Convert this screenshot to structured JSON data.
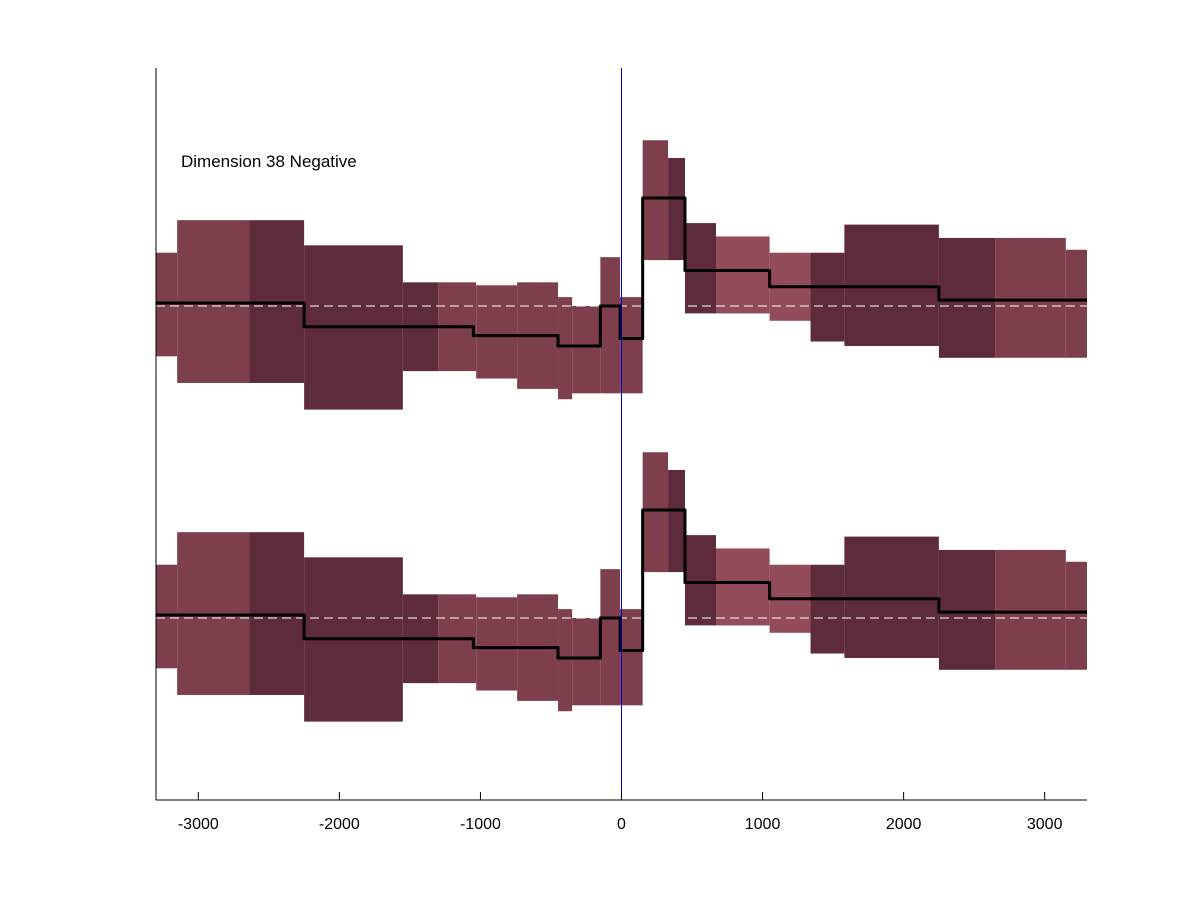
{
  "chart_data": {
    "type": "area",
    "title": "Dimension 38 Negative",
    "xlim": [
      -3300,
      3300
    ],
    "x_ticks": [
      -3000,
      -2000,
      -1000,
      0,
      1000,
      2000,
      3000
    ],
    "x_tick_labels": [
      "-3000",
      "-2000",
      "-1000",
      "0",
      "1000",
      "2000",
      "3000"
    ],
    "y_ticks_shown": false,
    "vertical_reference_x": 0,
    "colors": {
      "band_light": "#7e3f4d",
      "band_dark": "#5e2b3d",
      "band_highlight": "#924b58",
      "line": "#000000",
      "baseline": "#ffffff",
      "reference": "#0000cc"
    },
    "panels": [
      {
        "name": "upper",
        "baseline": 0,
        "bands": [
          {
            "x0": -3300,
            "x1": -3150,
            "lo": -0.34,
            "hi": 0.36,
            "shade": "light"
          },
          {
            "x0": -3150,
            "x1": -2640,
            "lo": -0.52,
            "hi": 0.58,
            "shade": "light"
          },
          {
            "x0": -2640,
            "x1": -2250,
            "lo": -0.52,
            "hi": 0.58,
            "shade": "dark"
          },
          {
            "x0": -2250,
            "x1": -1550,
            "lo": -0.7,
            "hi": 0.41,
            "shade": "dark"
          },
          {
            "x0": -1550,
            "x1": -1300,
            "lo": -0.44,
            "hi": 0.16,
            "shade": "dark"
          },
          {
            "x0": -1300,
            "x1": -1030,
            "lo": -0.44,
            "hi": 0.16,
            "shade": "light"
          },
          {
            "x0": -1030,
            "x1": -740,
            "lo": -0.49,
            "hi": 0.14,
            "shade": "light"
          },
          {
            "x0": -740,
            "x1": -450,
            "lo": -0.56,
            "hi": 0.16,
            "shade": "light"
          },
          {
            "x0": -450,
            "x1": -350,
            "lo": -0.63,
            "hi": 0.06,
            "shade": "light"
          },
          {
            "x0": -350,
            "x1": -150,
            "lo": -0.59,
            "hi": 0.0,
            "shade": "light"
          },
          {
            "x0": -150,
            "x1": -10,
            "lo": -0.59,
            "hi": 0.33,
            "shade": "light"
          },
          {
            "x0": -10,
            "x1": 150,
            "lo": -0.59,
            "hi": 0.06,
            "shade": "light"
          },
          {
            "x0": 150,
            "x1": 330,
            "lo": 0.31,
            "hi": 1.12,
            "shade": "light"
          },
          {
            "x0": 330,
            "x1": 450,
            "lo": 0.31,
            "hi": 1.0,
            "shade": "dark"
          },
          {
            "x0": 450,
            "x1": 670,
            "lo": -0.05,
            "hi": 0.56,
            "shade": "dark"
          },
          {
            "x0": 670,
            "x1": 1050,
            "lo": -0.05,
            "hi": 0.47,
            "shade": "highlight"
          },
          {
            "x0": 1050,
            "x1": 1340,
            "lo": -0.1,
            "hi": 0.36,
            "shade": "highlight"
          },
          {
            "x0": 1340,
            "x1": 1580,
            "lo": -0.24,
            "hi": 0.36,
            "shade": "dark"
          },
          {
            "x0": 1580,
            "x1": 2250,
            "lo": -0.27,
            "hi": 0.55,
            "shade": "dark"
          },
          {
            "x0": 2250,
            "x1": 2650,
            "lo": -0.35,
            "hi": 0.46,
            "shade": "dark"
          },
          {
            "x0": 2650,
            "x1": 3150,
            "lo": -0.35,
            "hi": 0.46,
            "shade": "light"
          },
          {
            "x0": 3150,
            "x1": 3300,
            "lo": -0.35,
            "hi": 0.38,
            "shade": "light"
          }
        ],
        "mean_steps": [
          {
            "x0": -3300,
            "x1": -2250,
            "y": 0.02
          },
          {
            "x0": -2250,
            "x1": -1050,
            "y": -0.14
          },
          {
            "x0": -1050,
            "x1": -450,
            "y": -0.2
          },
          {
            "x0": -450,
            "x1": -150,
            "y": -0.27
          },
          {
            "x0": -150,
            "x1": -10,
            "y": 0.0
          },
          {
            "x0": -10,
            "x1": 150,
            "y": -0.22
          },
          {
            "x0": 150,
            "x1": 450,
            "y": 0.73
          },
          {
            "x0": 450,
            "x1": 1050,
            "y": 0.24
          },
          {
            "x0": 1050,
            "x1": 2250,
            "y": 0.13
          },
          {
            "x0": 2250,
            "x1": 3300,
            "y": 0.04
          }
        ]
      },
      {
        "name": "lower",
        "baseline": 0,
        "bands": [
          {
            "x0": -3300,
            "x1": -3150,
            "lo": -0.34,
            "hi": 0.36,
            "shade": "light"
          },
          {
            "x0": -3150,
            "x1": -2640,
            "lo": -0.52,
            "hi": 0.58,
            "shade": "light"
          },
          {
            "x0": -2640,
            "x1": -2250,
            "lo": -0.52,
            "hi": 0.58,
            "shade": "dark"
          },
          {
            "x0": -2250,
            "x1": -1550,
            "lo": -0.7,
            "hi": 0.41,
            "shade": "dark"
          },
          {
            "x0": -1550,
            "x1": -1300,
            "lo": -0.44,
            "hi": 0.16,
            "shade": "dark"
          },
          {
            "x0": -1300,
            "x1": -1030,
            "lo": -0.44,
            "hi": 0.16,
            "shade": "light"
          },
          {
            "x0": -1030,
            "x1": -740,
            "lo": -0.49,
            "hi": 0.14,
            "shade": "light"
          },
          {
            "x0": -740,
            "x1": -450,
            "lo": -0.56,
            "hi": 0.16,
            "shade": "light"
          },
          {
            "x0": -450,
            "x1": -350,
            "lo": -0.63,
            "hi": 0.06,
            "shade": "light"
          },
          {
            "x0": -350,
            "x1": -150,
            "lo": -0.59,
            "hi": 0.0,
            "shade": "light"
          },
          {
            "x0": -150,
            "x1": -10,
            "lo": -0.59,
            "hi": 0.33,
            "shade": "light"
          },
          {
            "x0": -10,
            "x1": 150,
            "lo": -0.59,
            "hi": 0.06,
            "shade": "light"
          },
          {
            "x0": 150,
            "x1": 330,
            "lo": 0.31,
            "hi": 1.12,
            "shade": "light"
          },
          {
            "x0": 330,
            "x1": 450,
            "lo": 0.31,
            "hi": 1.0,
            "shade": "dark"
          },
          {
            "x0": 450,
            "x1": 670,
            "lo": -0.05,
            "hi": 0.56,
            "shade": "dark"
          },
          {
            "x0": 670,
            "x1": 1050,
            "lo": -0.05,
            "hi": 0.47,
            "shade": "highlight"
          },
          {
            "x0": 1050,
            "x1": 1340,
            "lo": -0.1,
            "hi": 0.36,
            "shade": "highlight"
          },
          {
            "x0": 1340,
            "x1": 1580,
            "lo": -0.24,
            "hi": 0.36,
            "shade": "dark"
          },
          {
            "x0": 1580,
            "x1": 2250,
            "lo": -0.27,
            "hi": 0.55,
            "shade": "dark"
          },
          {
            "x0": 2250,
            "x1": 2650,
            "lo": -0.35,
            "hi": 0.46,
            "shade": "dark"
          },
          {
            "x0": 2650,
            "x1": 3150,
            "lo": -0.35,
            "hi": 0.46,
            "shade": "light"
          },
          {
            "x0": 3150,
            "x1": 3300,
            "lo": -0.35,
            "hi": 0.38,
            "shade": "light"
          }
        ],
        "mean_steps": [
          {
            "x0": -3300,
            "x1": -2250,
            "y": 0.02
          },
          {
            "x0": -2250,
            "x1": -1050,
            "y": -0.14
          },
          {
            "x0": -1050,
            "x1": -450,
            "y": -0.2
          },
          {
            "x0": -450,
            "x1": -150,
            "y": -0.27
          },
          {
            "x0": -150,
            "x1": -10,
            "y": 0.0
          },
          {
            "x0": -10,
            "x1": 150,
            "y": -0.22
          },
          {
            "x0": 150,
            "x1": 450,
            "y": 0.73
          },
          {
            "x0": 450,
            "x1": 1050,
            "y": 0.24
          },
          {
            "x0": 1050,
            "x1": 2250,
            "y": 0.13
          },
          {
            "x0": 2250,
            "x1": 3300,
            "y": 0.04
          }
        ]
      }
    ]
  }
}
